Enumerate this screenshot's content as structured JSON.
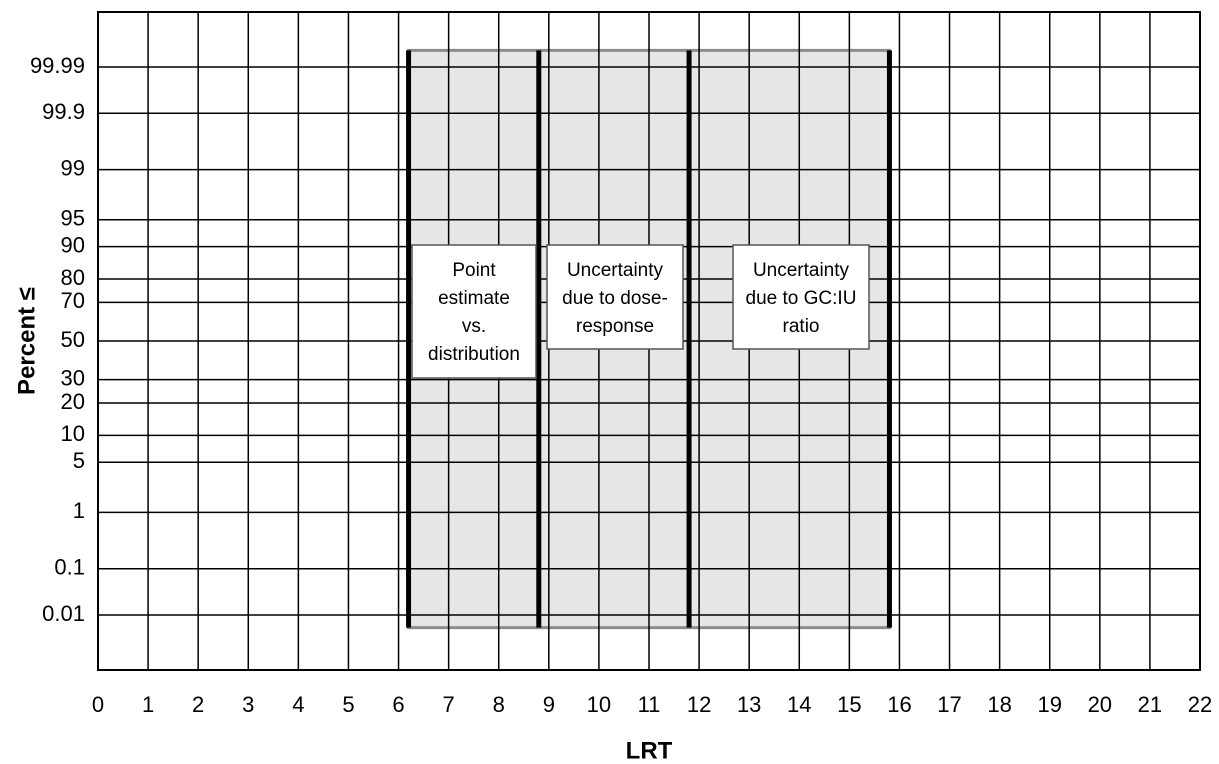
{
  "chart_data": {
    "type": "line",
    "x_label": "LRT",
    "y_label": "Percent ≤",
    "y_scale": "probability",
    "xlim": [
      0,
      22
    ],
    "xticks": [
      0,
      1,
      2,
      3,
      4,
      5,
      6,
      7,
      8,
      9,
      10,
      11,
      12,
      13,
      14,
      15,
      16,
      17,
      18,
      19,
      20,
      21,
      22
    ],
    "ylim": [
      0.0004,
      99.9996
    ],
    "yticks": [
      0.01,
      0.1,
      1,
      5,
      10,
      20,
      30,
      50,
      70,
      80,
      90,
      95,
      99,
      99.9,
      99.99
    ],
    "grid": true,
    "shaded_region": {
      "x": [
        6.2,
        15.8
      ],
      "y": [
        0.005,
        99.996
      ],
      "color": "#e6e6e6",
      "edge_color": "#8c8c8c"
    },
    "dividers": {
      "x": [
        6.2,
        8.8,
        11.8,
        15.8
      ],
      "color": "#000000"
    },
    "annotations": [
      {
        "lines": [
          "Point",
          "estimate",
          "vs.",
          "distribution"
        ]
      },
      {
        "lines": [
          "Uncertainty",
          "due to dose-",
          "response"
        ]
      },
      {
        "lines": [
          "Uncertainty",
          "due to GC:IU",
          "ratio"
        ]
      }
    ]
  }
}
